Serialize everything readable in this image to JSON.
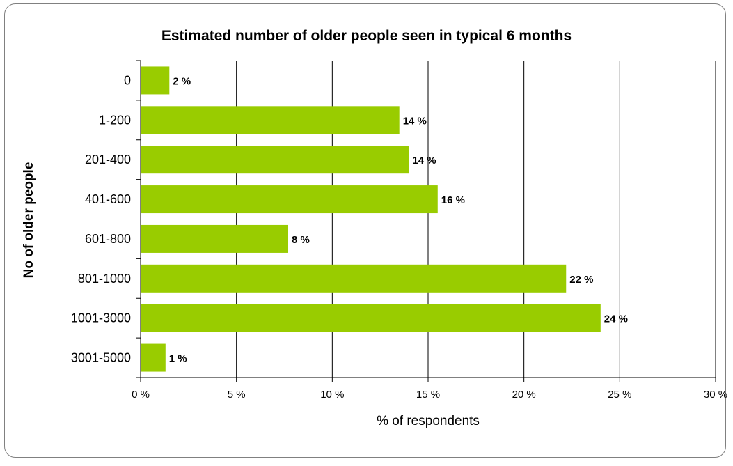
{
  "chart_data": {
    "type": "bar",
    "orientation": "horizontal",
    "title": "Estimated number of older people seen in typical 6 months",
    "xlabel": "% of respondents",
    "ylabel": "No of older people",
    "categories": [
      "0",
      "1-200",
      "201-400",
      "401-600",
      "601-800",
      "801-1000",
      "1001-3000",
      "3001-5000"
    ],
    "values": [
      1.5,
      13.5,
      14,
      15.5,
      7.7,
      22.2,
      24,
      1.3
    ],
    "data_labels": [
      "2 %",
      "14 %",
      "14 %",
      "16 %",
      "8 %",
      "22 %",
      "24 %",
      "1 %"
    ],
    "xlim": [
      0,
      30
    ],
    "x_ticks": [
      0,
      5,
      10,
      15,
      20,
      25,
      30
    ],
    "x_tick_labels": [
      "0 %",
      "5 %",
      "10 %",
      "15 %",
      "20 %",
      "25 %",
      "30 %"
    ],
    "grid": true,
    "legend": "none",
    "colors": {
      "bar": "#99CC00",
      "grid": "#000000",
      "frame": "#808080"
    }
  }
}
